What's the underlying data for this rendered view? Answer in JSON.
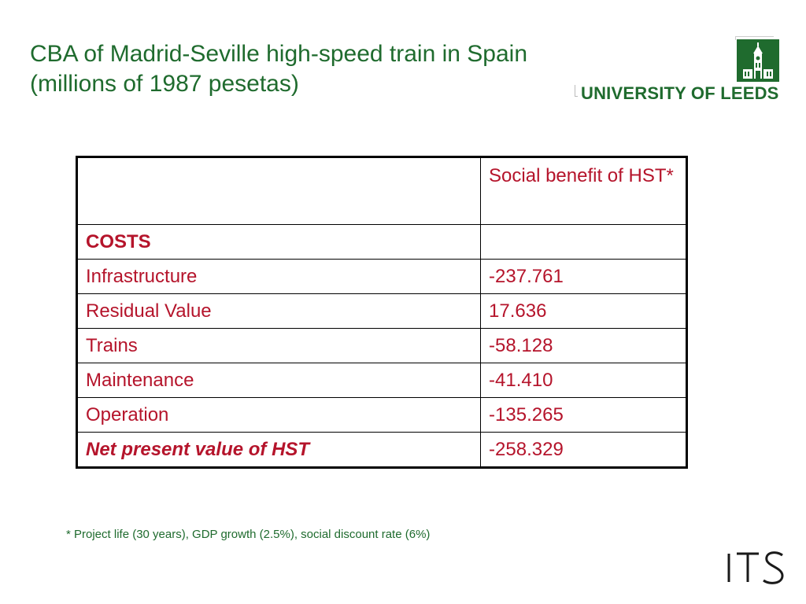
{
  "slide": {
    "title_line1": "CBA of Madrid-Seville high-speed train in Spain",
    "title_line2": "(millions of 1987 pesetas)"
  },
  "logos": {
    "university": "UNIVERSITY OF LEEDS",
    "its": "ITS",
    "brand_color": "#1f6b2e"
  },
  "table": {
    "header": {
      "col1": "",
      "col2": "Social benefit of HST*"
    },
    "section_label": "COSTS",
    "rows": [
      {
        "label": "Infrastructure",
        "value": "-237.761"
      },
      {
        "label": "Residual Value",
        "value": "17.636"
      },
      {
        "label": "Trains",
        "value": "-58.128"
      },
      {
        "label": "Maintenance",
        "value": "-41.410"
      },
      {
        "label": "Operation",
        "value": "-135.265"
      }
    ],
    "total": {
      "label": "Net present value of HST",
      "value": "-258.329"
    },
    "text_color": "#b5142b"
  },
  "footnote": "* Project life (30 years), GDP growth (2.5%), social discount rate (6%)"
}
